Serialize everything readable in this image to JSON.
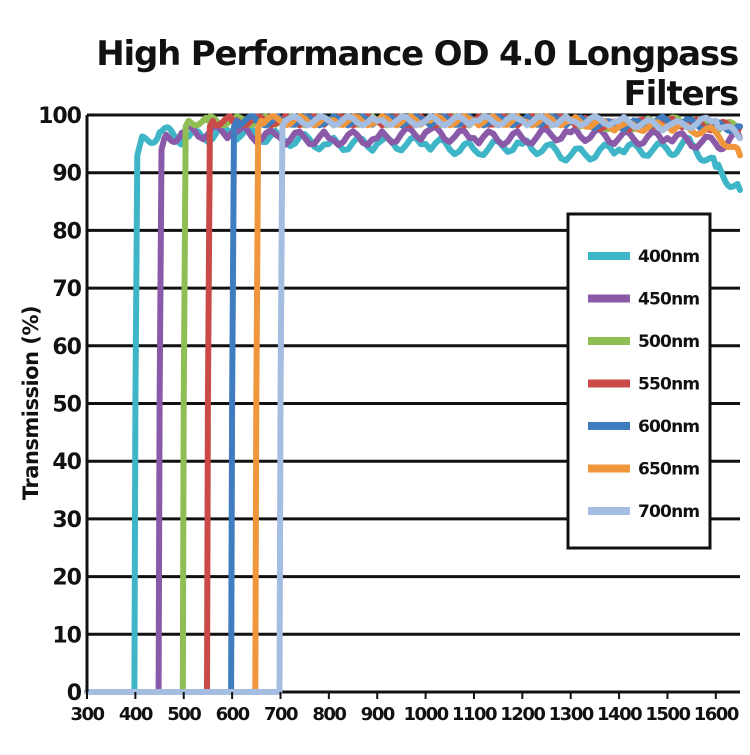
{
  "chart_data": {
    "type": "line",
    "title": "High Performance OD 4.0 Longpass Filters",
    "xlabel": "",
    "ylabel": "Transmission (%)",
    "xlim": [
      300,
      1650
    ],
    "ylim": [
      0,
      100
    ],
    "x_ticks": [
      "300",
      "400",
      "500",
      "600",
      "700",
      "800",
      "900",
      "1000",
      "1100",
      "1200",
      "1300",
      "1400",
      "1500",
      "1600"
    ],
    "y_ticks": [
      "0",
      "10",
      "20",
      "30",
      "40",
      "50",
      "60",
      "70",
      "80",
      "90",
      "100"
    ],
    "grid": "horizontal",
    "legend_position": "right",
    "series": [
      {
        "name": "400nm",
        "color": "#3fb6c8",
        "cut_on": 400,
        "x": [
          300,
          398,
          400,
          404,
          410,
          450,
          500,
          600,
          700,
          800,
          900,
          1000,
          1100,
          1200,
          1300,
          1400,
          1500,
          1550,
          1600,
          1650
        ],
        "y": [
          0,
          0,
          50,
          93,
          95,
          97,
          96,
          97,
          96,
          95,
          95,
          95,
          94,
          95,
          93,
          94,
          94,
          95,
          91,
          87
        ]
      },
      {
        "name": "450nm",
        "color": "#8a5aa8",
        "cut_on": 450,
        "x": [
          300,
          448,
          450,
          454,
          460,
          500,
          600,
          700,
          800,
          900,
          1000,
          1100,
          1200,
          1300,
          1400,
          1500,
          1600,
          1650
        ],
        "y": [
          0,
          0,
          50,
          94,
          96,
          97,
          97,
          96,
          96,
          96,
          97,
          96,
          96,
          97,
          96,
          96,
          95,
          96
        ]
      },
      {
        "name": "500nm",
        "color": "#8fbe54",
        "cut_on": 500,
        "x": [
          300,
          498,
          500,
          504,
          510,
          550,
          600,
          700,
          800,
          900,
          1000,
          1100,
          1200,
          1300,
          1400,
          1500,
          1600,
          1650
        ],
        "y": [
          0,
          0,
          50,
          98,
          99,
          99,
          99,
          99,
          99,
          99,
          99,
          99,
          99,
          99,
          98,
          99,
          98,
          98
        ]
      },
      {
        "name": "550nm",
        "color": "#c94a46",
        "cut_on": 550,
        "x": [
          300,
          548,
          550,
          554,
          560,
          600,
          700,
          800,
          900,
          1000,
          1100,
          1200,
          1300,
          1400,
          1500,
          1600,
          1650
        ],
        "y": [
          0,
          0,
          50,
          98,
          99,
          99,
          99,
          99,
          99,
          99,
          99,
          99,
          99,
          98,
          99,
          98,
          98
        ]
      },
      {
        "name": "600nm",
        "color": "#3f7dc0",
        "cut_on": 600,
        "x": [
          300,
          598,
          600,
          604,
          610,
          650,
          700,
          800,
          900,
          1000,
          1100,
          1200,
          1300,
          1400,
          1500,
          1600,
          1650
        ],
        "y": [
          0,
          0,
          50,
          98,
          99,
          99,
          99,
          99,
          99,
          99,
          99,
          99,
          99,
          98,
          99,
          98,
          98
        ]
      },
      {
        "name": "650nm",
        "color": "#f0973d",
        "cut_on": 650,
        "x": [
          300,
          648,
          650,
          654,
          660,
          700,
          800,
          900,
          1000,
          1100,
          1200,
          1300,
          1400,
          1500,
          1600,
          1650
        ],
        "y": [
          0,
          0,
          50,
          98,
          99,
          99,
          99,
          99,
          99,
          99,
          99,
          99,
          98,
          98,
          97,
          93
        ]
      },
      {
        "name": "700nm",
        "color": "#a4bde0",
        "cut_on": 700,
        "x": [
          300,
          698,
          700,
          704,
          710,
          800,
          900,
          1000,
          1100,
          1200,
          1300,
          1400,
          1500,
          1600,
          1650
        ],
        "y": [
          0,
          0,
          50,
          98,
          99,
          99,
          99,
          99,
          99,
          99,
          99,
          99,
          98,
          99,
          96
        ]
      }
    ]
  }
}
